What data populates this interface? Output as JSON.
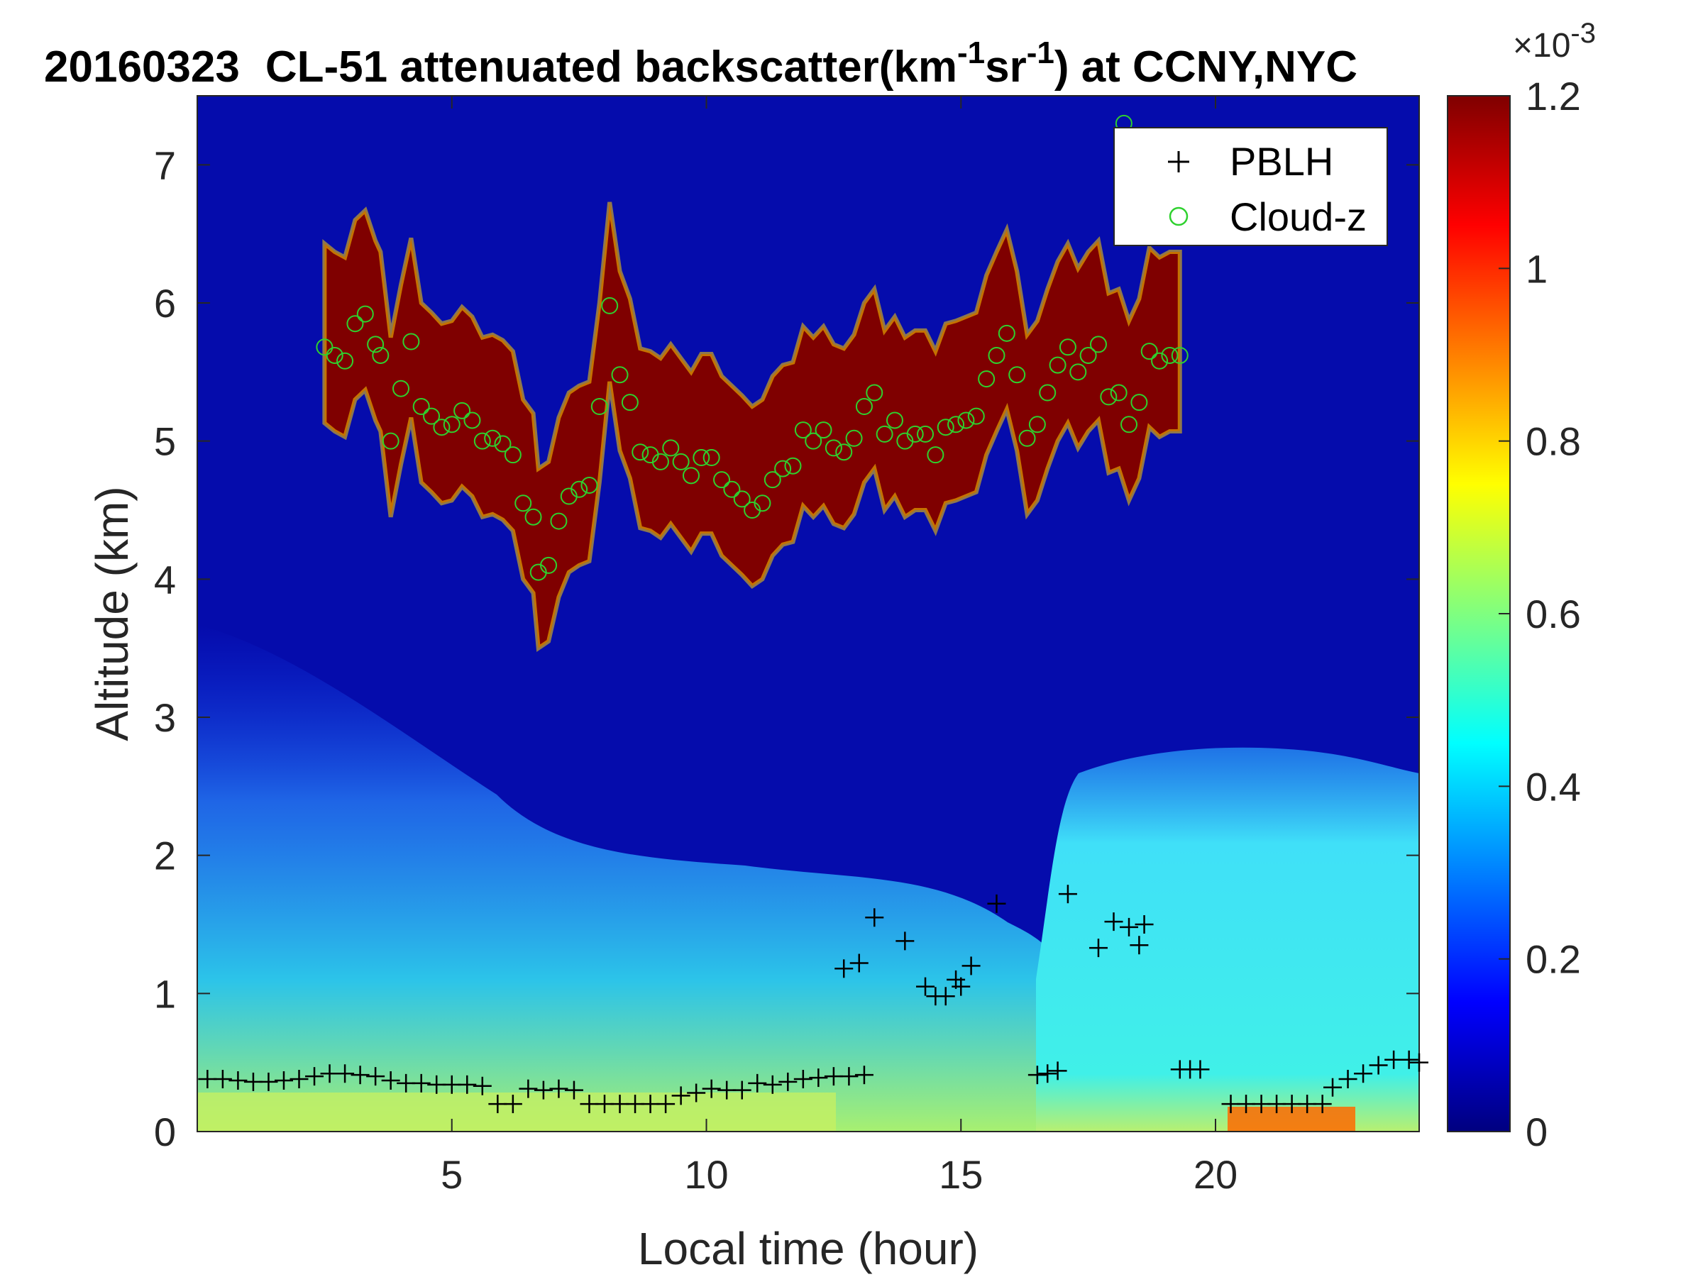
{
  "chart_data": {
    "type": "heatmap",
    "title": {
      "date": "20160323",
      "text_before_unit": "CL-51 attenuated backscatter(km",
      "exp1": "-1",
      "mid": "sr",
      "exp2": "-1",
      "text_after_unit": ") at CCNY,NYC"
    },
    "xlabel": "Local time (hour)",
    "ylabel": "Altitude (km)",
    "xlim": [
      0,
      24
    ],
    "ylim": [
      0,
      7.5
    ],
    "xticks": [
      5,
      10,
      15,
      20
    ],
    "yticks": [
      0,
      1,
      2,
      3,
      4,
      5,
      6,
      7
    ],
    "colorbar": {
      "colormap": "jet",
      "range": [
        0,
        0.0012
      ],
      "ticks": [
        "0",
        "0.2",
        "0.4",
        "0.6",
        "0.8",
        "1",
        "1.2"
      ],
      "tick_values": [
        0,
        0.2,
        0.4,
        0.6,
        0.8,
        1.0,
        1.2
      ],
      "exponent_base": "×10",
      "exponent": "-3"
    },
    "legend": {
      "position": "top-right",
      "entries": [
        {
          "name": "PBLH",
          "marker": "+",
          "color": "#000000"
        },
        {
          "name": "Cloud-z",
          "marker": "o",
          "color": "#2ed12e"
        }
      ]
    },
    "series": [
      {
        "name": "PBLH",
        "points": [
          [
            0.2,
            0.38
          ],
          [
            0.5,
            0.38
          ],
          [
            0.8,
            0.37
          ],
          [
            1.1,
            0.36
          ],
          [
            1.4,
            0.36
          ],
          [
            1.7,
            0.37
          ],
          [
            2.0,
            0.38
          ],
          [
            2.3,
            0.4
          ],
          [
            2.6,
            0.42
          ],
          [
            2.9,
            0.42
          ],
          [
            3.2,
            0.41
          ],
          [
            3.5,
            0.4
          ],
          [
            3.8,
            0.37
          ],
          [
            4.1,
            0.35
          ],
          [
            4.4,
            0.35
          ],
          [
            4.7,
            0.34
          ],
          [
            5.0,
            0.34
          ],
          [
            5.3,
            0.34
          ],
          [
            5.6,
            0.33
          ],
          [
            5.9,
            0.2
          ],
          [
            6.2,
            0.2
          ],
          [
            6.5,
            0.31
          ],
          [
            6.8,
            0.3
          ],
          [
            7.1,
            0.31
          ],
          [
            7.4,
            0.3
          ],
          [
            7.7,
            0.2
          ],
          [
            8.0,
            0.2
          ],
          [
            8.3,
            0.2
          ],
          [
            8.6,
            0.2
          ],
          [
            8.9,
            0.2
          ],
          [
            9.2,
            0.2
          ],
          [
            9.5,
            0.26
          ],
          [
            9.8,
            0.28
          ],
          [
            10.1,
            0.31
          ],
          [
            10.4,
            0.3
          ],
          [
            10.7,
            0.3
          ],
          [
            11.0,
            0.35
          ],
          [
            11.3,
            0.34
          ],
          [
            11.6,
            0.36
          ],
          [
            11.9,
            0.38
          ],
          [
            12.2,
            0.39
          ],
          [
            12.5,
            0.4
          ],
          [
            12.8,
            0.4
          ],
          [
            13.1,
            0.41
          ],
          [
            12.7,
            1.18
          ],
          [
            13.0,
            1.22
          ],
          [
            13.3,
            1.55
          ],
          [
            13.9,
            1.38
          ],
          [
            14.3,
            1.05
          ],
          [
            14.5,
            0.98
          ],
          [
            14.7,
            0.98
          ],
          [
            14.9,
            1.1
          ],
          [
            15.0,
            1.05
          ],
          [
            15.2,
            1.2
          ],
          [
            15.7,
            1.65
          ],
          [
            16.5,
            0.41
          ],
          [
            16.7,
            0.42
          ],
          [
            16.9,
            0.44
          ],
          [
            17.1,
            1.72
          ],
          [
            17.7,
            1.33
          ],
          [
            18.0,
            1.52
          ],
          [
            18.3,
            1.48
          ],
          [
            18.5,
            1.35
          ],
          [
            18.6,
            1.5
          ],
          [
            19.3,
            0.45
          ],
          [
            19.5,
            0.45
          ],
          [
            19.7,
            0.45
          ],
          [
            20.3,
            0.2
          ],
          [
            20.6,
            0.2
          ],
          [
            20.9,
            0.2
          ],
          [
            21.2,
            0.2
          ],
          [
            21.5,
            0.2
          ],
          [
            21.8,
            0.2
          ],
          [
            22.1,
            0.2
          ],
          [
            22.3,
            0.32
          ],
          [
            22.6,
            0.38
          ],
          [
            22.9,
            0.42
          ],
          [
            23.2,
            0.48
          ],
          [
            23.5,
            0.52
          ],
          [
            23.8,
            0.52
          ],
          [
            24.0,
            0.5
          ]
        ]
      },
      {
        "name": "Cloud-z",
        "points": [
          [
            2.5,
            5.68
          ],
          [
            2.7,
            5.62
          ],
          [
            2.9,
            5.58
          ],
          [
            3.1,
            5.85
          ],
          [
            3.3,
            5.92
          ],
          [
            3.5,
            5.7
          ],
          [
            3.6,
            5.62
          ],
          [
            3.8,
            5.0
          ],
          [
            4.0,
            5.38
          ],
          [
            4.2,
            5.72
          ],
          [
            4.4,
            5.25
          ],
          [
            4.6,
            5.18
          ],
          [
            4.8,
            5.1
          ],
          [
            5.0,
            5.12
          ],
          [
            5.2,
            5.22
          ],
          [
            5.4,
            5.15
          ],
          [
            5.6,
            5.0
          ],
          [
            5.8,
            5.02
          ],
          [
            6.0,
            4.98
          ],
          [
            6.2,
            4.9
          ],
          [
            6.4,
            4.55
          ],
          [
            6.6,
            4.45
          ],
          [
            6.7,
            4.05
          ],
          [
            6.9,
            4.1
          ],
          [
            7.1,
            4.42
          ],
          [
            7.3,
            4.6
          ],
          [
            7.5,
            4.65
          ],
          [
            7.7,
            4.68
          ],
          [
            7.9,
            5.25
          ],
          [
            8.1,
            5.98
          ],
          [
            8.3,
            5.48
          ],
          [
            8.5,
            5.28
          ],
          [
            8.7,
            4.92
          ],
          [
            8.9,
            4.9
          ],
          [
            9.1,
            4.85
          ],
          [
            9.3,
            4.95
          ],
          [
            9.5,
            4.85
          ],
          [
            9.7,
            4.75
          ],
          [
            9.9,
            4.88
          ],
          [
            10.1,
            4.88
          ],
          [
            10.3,
            4.72
          ],
          [
            10.5,
            4.65
          ],
          [
            10.7,
            4.58
          ],
          [
            10.9,
            4.5
          ],
          [
            11.1,
            4.55
          ],
          [
            11.3,
            4.72
          ],
          [
            11.5,
            4.8
          ],
          [
            11.7,
            4.82
          ],
          [
            11.9,
            5.08
          ],
          [
            12.1,
            5.0
          ],
          [
            12.3,
            5.08
          ],
          [
            12.5,
            4.95
          ],
          [
            12.7,
            4.92
          ],
          [
            12.9,
            5.02
          ],
          [
            13.1,
            5.25
          ],
          [
            13.3,
            5.35
          ],
          [
            13.5,
            5.05
          ],
          [
            13.7,
            5.15
          ],
          [
            13.9,
            5.0
          ],
          [
            14.1,
            5.05
          ],
          [
            14.3,
            5.05
          ],
          [
            14.5,
            4.9
          ],
          [
            14.7,
            5.1
          ],
          [
            14.9,
            5.12
          ],
          [
            15.1,
            5.15
          ],
          [
            15.3,
            5.18
          ],
          [
            15.5,
            5.45
          ],
          [
            15.7,
            5.62
          ],
          [
            15.9,
            5.78
          ],
          [
            16.1,
            5.48
          ],
          [
            16.3,
            5.02
          ],
          [
            16.5,
            5.12
          ],
          [
            16.7,
            5.35
          ],
          [
            16.9,
            5.55
          ],
          [
            17.1,
            5.68
          ],
          [
            17.3,
            5.5
          ],
          [
            17.5,
            5.62
          ],
          [
            17.7,
            5.7
          ],
          [
            17.9,
            5.32
          ],
          [
            18.1,
            5.35
          ],
          [
            18.3,
            5.12
          ],
          [
            18.5,
            5.28
          ],
          [
            18.7,
            5.65
          ],
          [
            18.9,
            5.58
          ],
          [
            19.1,
            5.62
          ],
          [
            19.3,
            5.62
          ],
          [
            18.2,
            7.3
          ]
        ]
      }
    ]
  }
}
